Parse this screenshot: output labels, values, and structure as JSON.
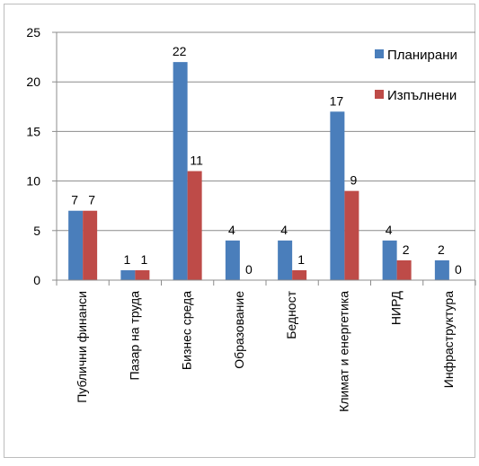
{
  "chart_data": {
    "type": "bar",
    "categories": [
      "Публични финанси",
      "Пазар на труда",
      "Бизнес среда",
      "Образование",
      "Бедност",
      "Климат и енергетика",
      "НИРД",
      "Инфраструктура"
    ],
    "series": [
      {
        "name": "Планирани",
        "values": [
          7,
          1,
          22,
          4,
          4,
          17,
          4,
          2
        ],
        "color": "#4a7ebb"
      },
      {
        "name": "Изпълнени",
        "values": [
          7,
          1,
          11,
          0,
          1,
          9,
          2,
          0
        ],
        "color": "#be4b48"
      }
    ],
    "ylim": [
      0,
      25
    ],
    "yticks": [
      0,
      5,
      10,
      15,
      20,
      25
    ],
    "grid": true,
    "legend": "top-right",
    "data_labels": true
  }
}
